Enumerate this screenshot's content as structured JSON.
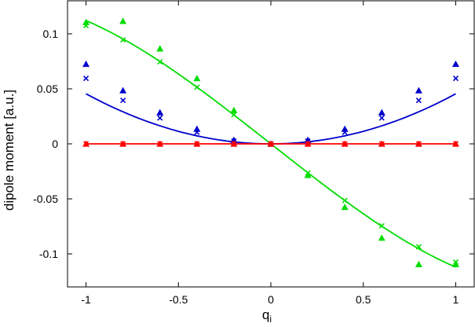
{
  "chart_data": {
    "type": "scatter",
    "title": "",
    "xlabel": "q",
    "xlabel_subscript": "i",
    "ylabel": "dipole moment [a.u.]",
    "xlim": [
      -1.1,
      1.1
    ],
    "ylim": [
      -0.13,
      0.13
    ],
    "grid": false,
    "legend": "none",
    "x_ticks": [
      -1,
      -0.5,
      0,
      0.5,
      1
    ],
    "x_tick_labels": [
      "-1",
      "-0.5",
      "0",
      "0.5",
      "1"
    ],
    "y_ticks": [
      -0.1,
      -0.05,
      0,
      0.05,
      0.1
    ],
    "y_tick_labels": [
      "-0.1",
      "-0.05",
      "0",
      "0.05",
      "0.1"
    ],
    "x": [
      -1,
      -0.8,
      -0.6,
      -0.4,
      -0.2,
      0,
      0.2,
      0.4,
      0.6,
      0.8,
      1
    ],
    "series": [
      {
        "color": "#00dd00",
        "marker": "triangle",
        "values": [
          0.1105,
          0.1115,
          0.0865,
          0.0595,
          0.0305,
          0,
          -0.0285,
          -0.0575,
          -0.0855,
          -0.1095,
          -0.1095
        ]
      },
      {
        "color": "#00dd00",
        "marker": "cross",
        "values": [
          0.1075,
          0.0945,
          0.0745,
          0.0515,
          0.0265,
          0,
          -0.0265,
          -0.0515,
          -0.0745,
          -0.0935,
          -0.1075
        ]
      },
      {
        "color": "#0000cc",
        "marker": "triangle",
        "values": [
          0.0725,
          0.0485,
          0.0285,
          0.0135,
          0.0035,
          0,
          0.0035,
          0.0135,
          0.0285,
          0.0485,
          0.0725
        ]
      },
      {
        "color": "#0000cc",
        "marker": "cross",
        "values": [
          0.0595,
          0.0395,
          0.0235,
          0.0105,
          0.0025,
          0,
          0.0025,
          0.0105,
          0.0235,
          0.0395,
          0.0595
        ]
      },
      {
        "color": "#ff0000",
        "marker": "triangle",
        "values": [
          0,
          0,
          0,
          0,
          0,
          0,
          0,
          0,
          0,
          0,
          0
        ]
      },
      {
        "color": "#ff0000",
        "marker": "cross",
        "values": [
          0,
          0,
          0,
          0,
          0,
          0,
          0,
          0,
          0,
          0,
          0
        ]
      }
    ],
    "fit_curves": [
      {
        "color": "#00dd00",
        "a": -0.132,
        "b": 0.02
      },
      {
        "color": "#0000cc",
        "quad": 0.0455
      },
      {
        "color": "#ff0000",
        "quad": 0
      }
    ]
  }
}
